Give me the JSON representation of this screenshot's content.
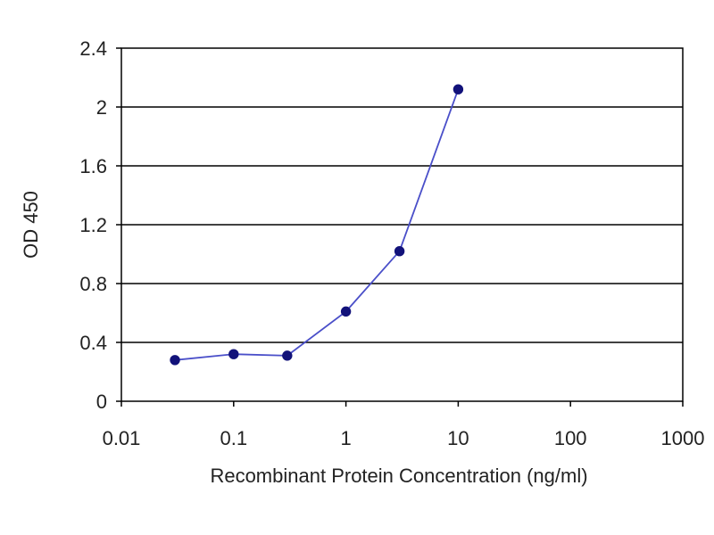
{
  "chart_data": {
    "type": "line",
    "title": "",
    "xlabel": "Recombinant Protein Concentration (ng/ml)",
    "ylabel": "OD 450",
    "x_scale": "log",
    "xlim": [
      0.01,
      1000
    ],
    "ylim": [
      0,
      2.4
    ],
    "x_ticks": [
      "0.01",
      "0.1",
      "1",
      "10",
      "100",
      "1000"
    ],
    "y_ticks": [
      "0",
      "0.4",
      "0.8",
      "1.2",
      "1.6",
      "2",
      "2.4"
    ],
    "grid": "horizontal",
    "legend": "none",
    "series": [
      {
        "x": [
          0.03,
          0.1,
          0.3,
          1,
          3,
          10
        ],
        "y": [
          0.28,
          0.32,
          0.31,
          0.61,
          1.02,
          2.12
        ]
      }
    ],
    "colors": {
      "line": "#4a4fc9",
      "marker": "#12127a",
      "grid": "#000000",
      "axis": "#000000",
      "text": "#222222"
    }
  }
}
